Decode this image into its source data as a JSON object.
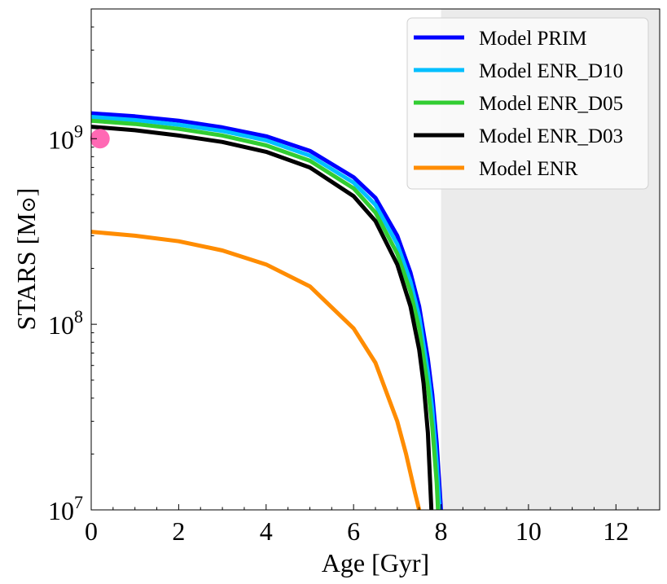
{
  "chart_data": {
    "type": "line",
    "xlabel": "Age [Gyr]",
    "ylabel": "STARS [M",
    "ylabel_sub": "⊙",
    "ylabel_close": "]",
    "xlim": [
      0,
      13
    ],
    "ylim": [
      10000000,
      5000000000
    ],
    "yscale": "log",
    "grid": false,
    "legend_position": "top-right",
    "x_ticks": [
      {
        "value": 0,
        "label": "0"
      },
      {
        "value": 2,
        "label": "2"
      },
      {
        "value": 4,
        "label": "4"
      },
      {
        "value": 6,
        "label": "6"
      },
      {
        "value": 8,
        "label": "8"
      },
      {
        "value": 10,
        "label": "10"
      },
      {
        "value": 12,
        "label": "12"
      }
    ],
    "y_ticks": [
      {
        "value": 10000000,
        "base": "10",
        "exp": "7"
      },
      {
        "value": 100000000,
        "base": "10",
        "exp": "8"
      },
      {
        "value": 1000000000,
        "base": "10",
        "exp": "9"
      }
    ],
    "shaded_region": {
      "x_start": 8,
      "x_end": 13,
      "color": "#ebebeb"
    },
    "series": [
      {
        "name": "Model PRIM",
        "color": "#0000ff",
        "x": [
          0,
          1,
          2,
          3,
          4,
          5,
          6,
          6.5,
          7,
          7.3,
          7.5,
          7.7,
          7.8,
          7.9,
          7.95,
          8.0
        ],
        "y": [
          1370000000,
          1320000000,
          1250000000,
          1150000000,
          1030000000,
          860000000,
          620000000,
          480000000,
          300000000,
          190000000,
          125000000,
          65000000,
          42000000,
          23000000,
          15000000,
          10000000
        ]
      },
      {
        "name": "Model ENR_D10",
        "color": "#00bfff",
        "x": [
          0,
          1,
          2,
          3,
          4,
          5,
          6,
          6.5,
          7,
          7.3,
          7.5,
          7.7,
          7.8,
          7.9,
          7.97
        ],
        "y": [
          1310000000,
          1260000000,
          1190000000,
          1100000000,
          980000000,
          810000000,
          580000000,
          440000000,
          270000000,
          170000000,
          110000000,
          55000000,
          35000000,
          18000000,
          10000000
        ]
      },
      {
        "name": "Model ENR_D05",
        "color": "#32cd32",
        "x": [
          0,
          1,
          2,
          3,
          4,
          5,
          6,
          6.5,
          7,
          7.3,
          7.5,
          7.7,
          7.8,
          7.9,
          7.93
        ],
        "y": [
          1250000000,
          1200000000,
          1130000000,
          1040000000,
          920000000,
          760000000,
          540000000,
          400000000,
          240000000,
          150000000,
          95000000,
          46000000,
          28000000,
          14000000,
          10000000
        ]
      },
      {
        "name": "Model ENR_D03",
        "color": "#000000",
        "x": [
          0,
          1,
          2,
          3,
          4,
          5,
          6,
          6.5,
          7,
          7.3,
          7.5,
          7.6,
          7.7,
          7.78
        ],
        "y": [
          1160000000,
          1110000000,
          1040000000,
          960000000,
          850000000,
          700000000,
          490000000,
          360000000,
          210000000,
          125000000,
          73000000,
          48000000,
          26000000,
          10000000
        ]
      },
      {
        "name": "Model ENR",
        "color": "#ff8c00",
        "x": [
          0,
          1,
          2,
          3,
          4,
          5,
          6,
          6.5,
          7,
          7.2,
          7.4,
          7.5
        ],
        "y": [
          315000000,
          300000000,
          280000000,
          250000000,
          210000000,
          160000000,
          95000000,
          62000000,
          30000000,
          20000000,
          12500000,
          10000000
        ]
      }
    ],
    "marker": {
      "x": 0.2,
      "y": 1000000000,
      "color": "#ff69b4"
    }
  }
}
